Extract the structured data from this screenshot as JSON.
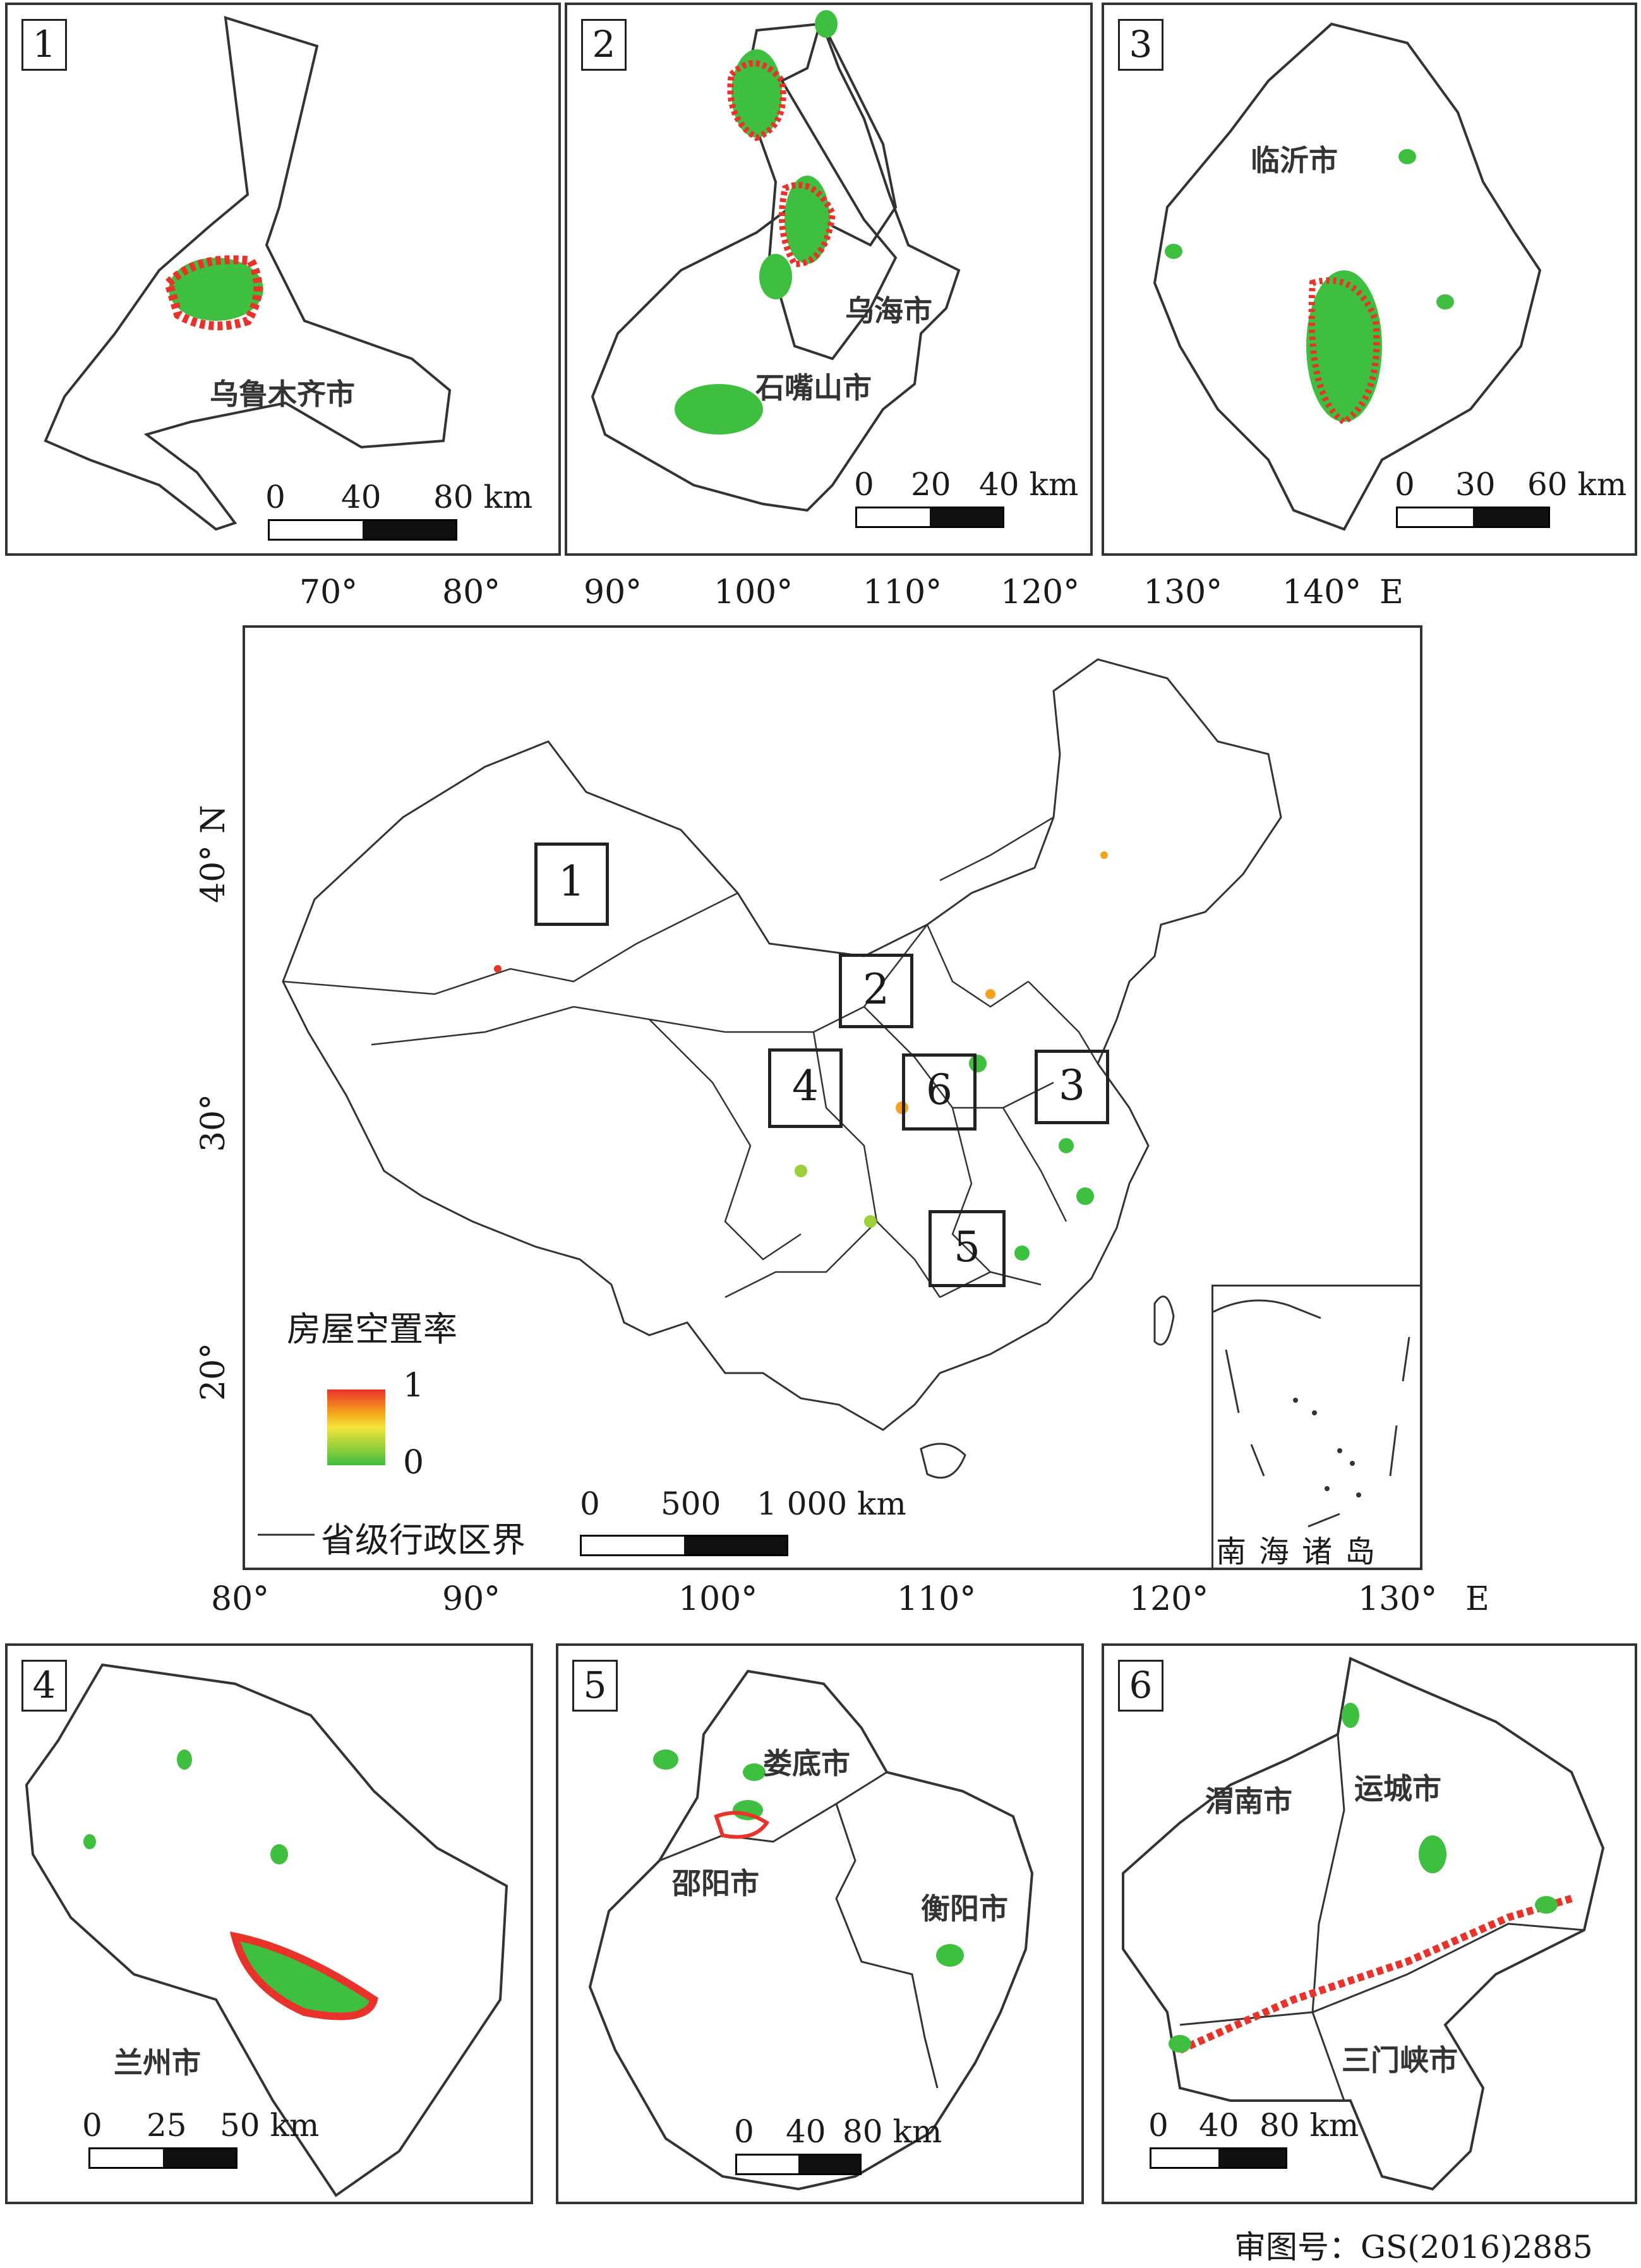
{
  "insets": [
    {
      "number": "1",
      "cities": [
        "乌鲁木齐市"
      ],
      "scale": {
        "ticks": [
          "0",
          "40",
          "80 km"
        ]
      }
    },
    {
      "number": "2",
      "cities": [
        "乌海市",
        "石嘴山市"
      ],
      "scale": {
        "ticks": [
          "0",
          "20",
          "40 km"
        ]
      }
    },
    {
      "number": "3",
      "cities": [
        "临沂市"
      ],
      "scale": {
        "ticks": [
          "0",
          "30",
          "60 km"
        ]
      }
    },
    {
      "number": "4",
      "cities": [
        "兰州市"
      ],
      "scale": {
        "ticks": [
          "0",
          "25",
          "50 km"
        ]
      }
    },
    {
      "number": "5",
      "cities": [
        "娄底市",
        "邵阳市",
        "衡阳市"
      ],
      "scale": {
        "ticks": [
          "0",
          "40",
          "80 km"
        ]
      }
    },
    {
      "number": "6",
      "cities": [
        "渭南市",
        "运城市",
        "三门峡市"
      ],
      "scale": {
        "ticks": [
          "0",
          "40",
          "80 km"
        ]
      }
    }
  ],
  "main_map": {
    "top_axis": {
      "ticks": [
        "70°",
        "80°",
        "90°",
        "100°",
        "110°",
        "120°",
        "130°",
        "140°"
      ],
      "unit": "E"
    },
    "bottom_axis": {
      "ticks": [
        "80°",
        "90°",
        "100°",
        "110°",
        "120°",
        "130°"
      ],
      "unit": "E"
    },
    "left_axis": {
      "ticks": [
        "40°",
        "30°",
        "20°"
      ],
      "unit": "N"
    },
    "region_boxes": [
      "1",
      "2",
      "3",
      "4",
      "5",
      "6"
    ],
    "legend": {
      "title": "房屋空置率",
      "max_label": "1",
      "min_label": "0",
      "ramp_colors": [
        "#e8322a",
        "#f7a21b",
        "#f4e53a",
        "#9bd03a",
        "#3fbf3f"
      ],
      "boundary_label": "省级行政区界"
    },
    "scale": {
      "ticks": [
        "0",
        "500",
        "1 000 km"
      ]
    },
    "south_sea_inset_label": "南海诸岛"
  },
  "colors": {
    "vacancy_high": "#e8322a",
    "vacancy_mid": "#f7a21b",
    "vacancy_low": "#3fbf3f",
    "boundary": "#333333"
  },
  "approval_number": "审图号：GS(2016)2885"
}
